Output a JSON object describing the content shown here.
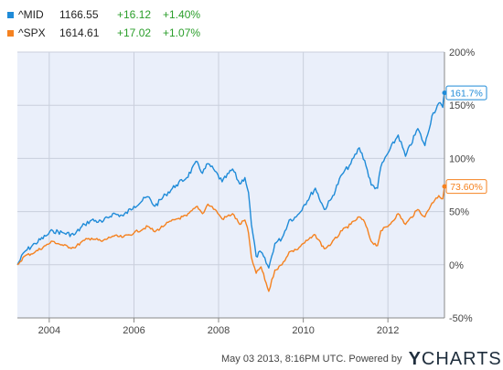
{
  "legend": [
    {
      "symbol": "^MID",
      "price": "1166.55",
      "change": "+16.12",
      "pct": "+1.40%",
      "color": "#1f8bd8"
    },
    {
      "symbol": "^SPX",
      "price": "1614.61",
      "change": "+17.02",
      "pct": "+1.07%",
      "color": "#f58220"
    }
  ],
  "footer": {
    "timestamp": "May 03 2013, 8:16PM UTC.",
    "powered_by": "Powered by",
    "logo_y": "Y",
    "logo_rest": "CHARTS"
  },
  "chart_data": {
    "type": "line",
    "xlim": [
      "2003-04-01",
      "2013-05-03"
    ],
    "ylim": [
      -50,
      200
    ],
    "y_unit": "%",
    "y_ticks": [
      -50,
      0,
      50,
      100,
      150,
      200
    ],
    "y_tick_labels": [
      "-50%",
      "0%",
      "50%",
      "100%",
      "150%",
      "200%"
    ],
    "x_ticks": [
      "2004-01-01",
      "2006-01-01",
      "2008-01-01",
      "2010-01-01",
      "2012-01-01"
    ],
    "x_tick_labels": [
      "2004",
      "2006",
      "2008",
      "2010",
      "2012"
    ],
    "grid": true,
    "background": "#eaeffa",
    "series": [
      {
        "name": "^MID",
        "color": "#1f8bd8",
        "end_label": "161.7%",
        "points": [
          [
            "2003-04-01",
            0
          ],
          [
            "2003-06-01",
            12
          ],
          [
            "2003-09-01",
            20
          ],
          [
            "2003-12-01",
            27
          ],
          [
            "2004-02-01",
            32
          ],
          [
            "2004-05-01",
            30
          ],
          [
            "2004-08-01",
            28
          ],
          [
            "2004-11-01",
            38
          ],
          [
            "2005-01-01",
            42
          ],
          [
            "2005-04-01",
            40
          ],
          [
            "2005-07-01",
            48
          ],
          [
            "2005-10-01",
            46
          ],
          [
            "2006-01-01",
            55
          ],
          [
            "2006-05-01",
            64
          ],
          [
            "2006-07-01",
            55
          ],
          [
            "2006-10-01",
            66
          ],
          [
            "2007-01-01",
            75
          ],
          [
            "2007-04-01",
            82
          ],
          [
            "2007-07-01",
            97
          ],
          [
            "2007-08-15",
            86
          ],
          [
            "2007-10-01",
            95
          ],
          [
            "2007-12-01",
            88
          ],
          [
            "2008-02-01",
            78
          ],
          [
            "2008-05-01",
            90
          ],
          [
            "2008-07-01",
            76
          ],
          [
            "2008-08-15",
            82
          ],
          [
            "2008-09-15",
            68
          ],
          [
            "2008-10-10",
            38
          ],
          [
            "2008-11-20",
            8
          ],
          [
            "2009-01-01",
            12
          ],
          [
            "2009-03-09",
            -3
          ],
          [
            "2009-05-01",
            20
          ],
          [
            "2009-07-01",
            25
          ],
          [
            "2009-09-01",
            42
          ],
          [
            "2009-11-01",
            45
          ],
          [
            "2010-01-01",
            55
          ],
          [
            "2010-04-15",
            72
          ],
          [
            "2010-07-01",
            52
          ],
          [
            "2010-09-01",
            62
          ],
          [
            "2010-12-01",
            85
          ],
          [
            "2011-02-15",
            95
          ],
          [
            "2011-04-29",
            110
          ],
          [
            "2011-06-15",
            98
          ],
          [
            "2011-08-10",
            75
          ],
          [
            "2011-10-03",
            72
          ],
          [
            "2011-11-01",
            92
          ],
          [
            "2012-01-01",
            105
          ],
          [
            "2012-03-30",
            122
          ],
          [
            "2012-06-01",
            102
          ],
          [
            "2012-09-15",
            128
          ],
          [
            "2012-11-15",
            112
          ],
          [
            "2013-01-15",
            140
          ],
          [
            "2013-03-15",
            152
          ],
          [
            "2013-04-18",
            148
          ],
          [
            "2013-05-03",
            161.7
          ]
        ]
      },
      {
        "name": "^SPX",
        "color": "#f58220",
        "end_label": "73.60%",
        "points": [
          [
            "2003-04-01",
            0
          ],
          [
            "2003-06-01",
            8
          ],
          [
            "2003-09-01",
            12
          ],
          [
            "2003-12-01",
            18
          ],
          [
            "2004-02-01",
            22
          ],
          [
            "2004-05-01",
            18
          ],
          [
            "2004-08-01",
            16
          ],
          [
            "2004-11-01",
            23
          ],
          [
            "2005-01-01",
            25
          ],
          [
            "2005-04-01",
            22
          ],
          [
            "2005-07-01",
            27
          ],
          [
            "2005-10-01",
            26
          ],
          [
            "2006-01-01",
            30
          ],
          [
            "2006-05-01",
            36
          ],
          [
            "2006-07-01",
            31
          ],
          [
            "2006-10-01",
            38
          ],
          [
            "2007-01-01",
            43
          ],
          [
            "2007-04-01",
            46
          ],
          [
            "2007-07-01",
            55
          ],
          [
            "2007-08-15",
            48
          ],
          [
            "2007-10-01",
            57
          ],
          [
            "2007-12-01",
            52
          ],
          [
            "2008-02-01",
            43
          ],
          [
            "2008-05-01",
            48
          ],
          [
            "2008-07-01",
            38
          ],
          [
            "2008-08-15",
            42
          ],
          [
            "2008-09-15",
            30
          ],
          [
            "2008-10-10",
            7
          ],
          [
            "2008-11-20",
            -8
          ],
          [
            "2009-01-01",
            -2
          ],
          [
            "2009-03-09",
            -25
          ],
          [
            "2009-05-01",
            -5
          ],
          [
            "2009-07-01",
            0
          ],
          [
            "2009-09-01",
            12
          ],
          [
            "2009-11-01",
            14
          ],
          [
            "2010-01-01",
            20
          ],
          [
            "2010-04-15",
            28
          ],
          [
            "2010-07-01",
            15
          ],
          [
            "2010-09-01",
            20
          ],
          [
            "2010-12-01",
            32
          ],
          [
            "2011-02-15",
            38
          ],
          [
            "2011-04-29",
            45
          ],
          [
            "2011-06-15",
            40
          ],
          [
            "2011-08-10",
            22
          ],
          [
            "2011-10-03",
            18
          ],
          [
            "2011-11-01",
            32
          ],
          [
            "2012-01-01",
            36
          ],
          [
            "2012-03-30",
            48
          ],
          [
            "2012-06-01",
            38
          ],
          [
            "2012-09-15",
            52
          ],
          [
            "2012-11-15",
            45
          ],
          [
            "2013-01-15",
            58
          ],
          [
            "2013-03-15",
            65
          ],
          [
            "2013-04-18",
            62
          ],
          [
            "2013-05-03",
            73.6
          ]
        ]
      }
    ]
  }
}
